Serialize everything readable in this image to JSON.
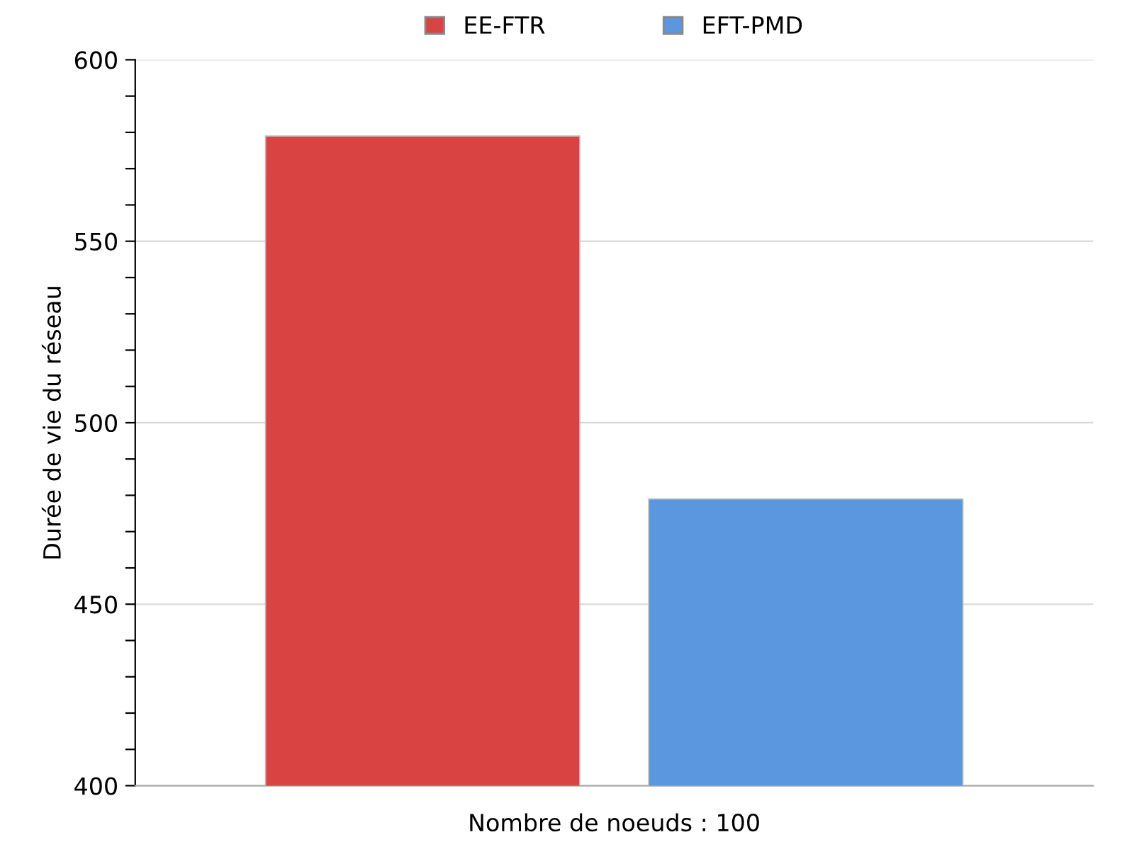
{
  "chart_data": {
    "type": "bar",
    "ylabel": "Durée de vie du réseau",
    "categories": [
      "Nombre de noeuds : 100"
    ],
    "series": [
      {
        "name": "EE-FTR",
        "color": "#d94341",
        "values": [
          579
        ]
      },
      {
        "name": "EFT-PMD",
        "color": "#5b97df",
        "values": [
          479
        ]
      }
    ],
    "ylim": [
      400,
      600
    ],
    "yticks": [
      400,
      {
        "value": 410,
        "label": null
      },
      {
        "value": 420,
        "label": null
      },
      {
        "value": 430,
        "label": null
      },
      {
        "value": 440,
        "label": null
      },
      450,
      {
        "value": 460,
        "label": null
      },
      {
        "value": 470,
        "label": null
      },
      {
        "value": 480,
        "label": null
      },
      {
        "value": 490,
        "label": null
      },
      500,
      {
        "value": 510,
        "label": null
      },
      {
        "value": 520,
        "label": null
      },
      {
        "value": 530,
        "label": null
      },
      {
        "value": 540,
        "label": null
      },
      550,
      {
        "value": 560,
        "label": null
      },
      {
        "value": 570,
        "label": null
      },
      {
        "value": 580,
        "label": null
      },
      {
        "value": 590,
        "label": null
      },
      600
    ],
    "grid": "y",
    "legend": "top"
  }
}
